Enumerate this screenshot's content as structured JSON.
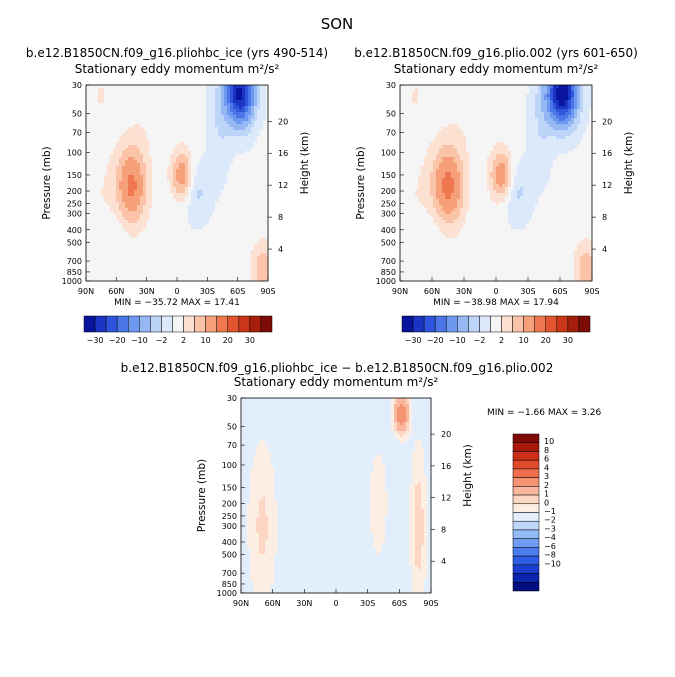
{
  "figure": {
    "season": "SON",
    "diff_title": "b.e12.B1850CN.f09_g16.pliohbc_ice − b.e12.B1850CN.f09_g16.plio.002"
  },
  "colors": {
    "main_levels": [
      "#08149e",
      "#1b34c4",
      "#2f55dc",
      "#4a76e8",
      "#6c98f0",
      "#95b8f5",
      "#bcd4f8",
      "#dce9fb",
      "#f5f5f5",
      "#fce1d2",
      "#fbc3a8",
      "#f6a07a",
      "#ef7850",
      "#e25530",
      "#c93718",
      "#a51e0c",
      "#7c0c05"
    ],
    "diff_levels": [
      "#000e82",
      "#0a24ad",
      "#1a3fd0",
      "#2f5de6",
      "#4b7cee",
      "#6e9cf3",
      "#95bbf7",
      "#c0d7f9",
      "#e3eefc",
      "#fdeee4",
      "#fcd6c2",
      "#fab79d",
      "#f69373",
      "#ef6d4d",
      "#e24a2c",
      "#cb2f18",
      "#a8190b",
      "#800a04"
    ]
  },
  "chart_data": [
    {
      "type": "heatmap",
      "id": "panel_left",
      "header": "b.e12.B1850CN.f09_g16.pliohbc_ice (yrs 490-514)",
      "title": "Stationary eddy momentum  m²/s²",
      "ylabel": "Pressure (mb)",
      "y2label": "Height (km)",
      "x_ticks": [
        "90N",
        "60N",
        "30N",
        "0",
        "30S",
        "60S",
        "90S"
      ],
      "x_tick_values": [
        90,
        60,
        30,
        0,
        -30,
        -60,
        -90
      ],
      "y_ticks": [
        "30",
        "50",
        "70",
        "100",
        "150",
        "200",
        "250",
        "300",
        "400",
        "500",
        "700",
        "850",
        "1000"
      ],
      "y_tick_values": [
        30,
        50,
        70,
        100,
        150,
        200,
        250,
        300,
        400,
        500,
        700,
        850,
        1000
      ],
      "height_ticks": [
        "20",
        "16",
        "12",
        "8",
        "4"
      ],
      "height_tick_values": [
        20,
        16,
        12,
        8,
        4
      ],
      "xlim": [
        90,
        -90
      ],
      "ylim_mb": [
        1000,
        30
      ],
      "min_label": "MIN =  −35.72   MAX =   17.41",
      "min": -35.72,
      "max": 17.41,
      "features": [
        {
          "lat": 45,
          "p": 180,
          "value": 17.4
        },
        {
          "lat": -5,
          "p": 150,
          "value": 14.5
        },
        {
          "lat": -62,
          "p": 35,
          "value": -35.7
        },
        {
          "lat": -20,
          "p": 200,
          "value": -6
        },
        {
          "lat": 60,
          "p": 450,
          "value": -2.5
        },
        {
          "lat": -85,
          "p": 800,
          "value": 10
        },
        {
          "lat": 75,
          "p": 35,
          "value": 3
        }
      ]
    },
    {
      "type": "heatmap",
      "id": "panel_right",
      "header": "b.e12.B1850CN.f09_g16.plio.002 (yrs 601-650)",
      "title": "Stationary eddy momentum  m²/s²",
      "ylabel": "Pressure (mb)",
      "y2label": "Height (km)",
      "x_ticks": [
        "90N",
        "60N",
        "30N",
        "0",
        "30S",
        "60S",
        "90S"
      ],
      "x_tick_values": [
        90,
        60,
        30,
        0,
        -30,
        -60,
        -90
      ],
      "y_ticks": [
        "30",
        "50",
        "70",
        "100",
        "150",
        "200",
        "250",
        "300",
        "400",
        "500",
        "700",
        "850",
        "1000"
      ],
      "y_tick_values": [
        30,
        50,
        70,
        100,
        150,
        200,
        250,
        300,
        400,
        500,
        700,
        850,
        1000
      ],
      "height_ticks": [
        "20",
        "16",
        "12",
        "8",
        "4"
      ],
      "height_tick_values": [
        20,
        16,
        12,
        8,
        4
      ],
      "xlim": [
        90,
        -90
      ],
      "ylim_mb": [
        1000,
        30
      ],
      "min_label": "MIN =  −38.98   MAX =   17.94",
      "min": -38.98,
      "max": 17.94,
      "features": [
        {
          "lat": 45,
          "p": 180,
          "value": 17.9
        },
        {
          "lat": -5,
          "p": 150,
          "value": 14.8
        },
        {
          "lat": -62,
          "p": 35,
          "value": -39
        },
        {
          "lat": -20,
          "p": 200,
          "value": -6
        },
        {
          "lat": 60,
          "p": 450,
          "value": -2.5
        },
        {
          "lat": -85,
          "p": 800,
          "value": 10
        },
        {
          "lat": 75,
          "p": 35,
          "value": 3
        }
      ]
    },
    {
      "type": "heatmap",
      "id": "panel_diff",
      "title": "Stationary eddy momentum  m²/s²",
      "ylabel": "Pressure (mb)",
      "y2label": "Height (km)",
      "x_ticks": [
        "90N",
        "60N",
        "30N",
        "0",
        "30S",
        "60S",
        "90S"
      ],
      "x_tick_values": [
        90,
        60,
        30,
        0,
        -30,
        -60,
        -90
      ],
      "y_ticks": [
        "30",
        "50",
        "70",
        "100",
        "150",
        "200",
        "250",
        "300",
        "400",
        "500",
        "700",
        "850",
        "1000"
      ],
      "y_tick_values": [
        30,
        50,
        70,
        100,
        150,
        200,
        250,
        300,
        400,
        500,
        700,
        850,
        1000
      ],
      "height_ticks": [
        "20",
        "16",
        "12",
        "8",
        "4"
      ],
      "height_tick_values": [
        20,
        16,
        12,
        8,
        4
      ],
      "xlim": [
        90,
        -90
      ],
      "ylim_mb": [
        1000,
        30
      ],
      "min_label": "MIN =   −1.66   MAX =    3.26",
      "min": -1.66,
      "max": 3.26,
      "features": [
        {
          "lat": -62,
          "p": 40,
          "value": 3.26
        },
        {
          "lat": -15,
          "p": 170,
          "value": -1.66
        }
      ]
    }
  ],
  "colorbar_main": {
    "orientation": "horizontal",
    "labels": [
      "−30",
      "−20",
      "−10",
      "−2",
      "2",
      "10",
      "20",
      "30"
    ],
    "levels": [
      -30,
      -20,
      -10,
      -2,
      2,
      10,
      20,
      30
    ]
  },
  "colorbar_diff": {
    "orientation": "vertical",
    "labels": [
      "10",
      "8",
      "6",
      "4",
      "3",
      "2",
      "1",
      "0",
      "−1",
      "−2",
      "−3",
      "−4",
      "−6",
      "−8",
      "−10"
    ],
    "levels": [
      10,
      8,
      6,
      4,
      3,
      2,
      1,
      0,
      -1,
      -2,
      -3,
      -4,
      -6,
      -8,
      -10
    ]
  }
}
